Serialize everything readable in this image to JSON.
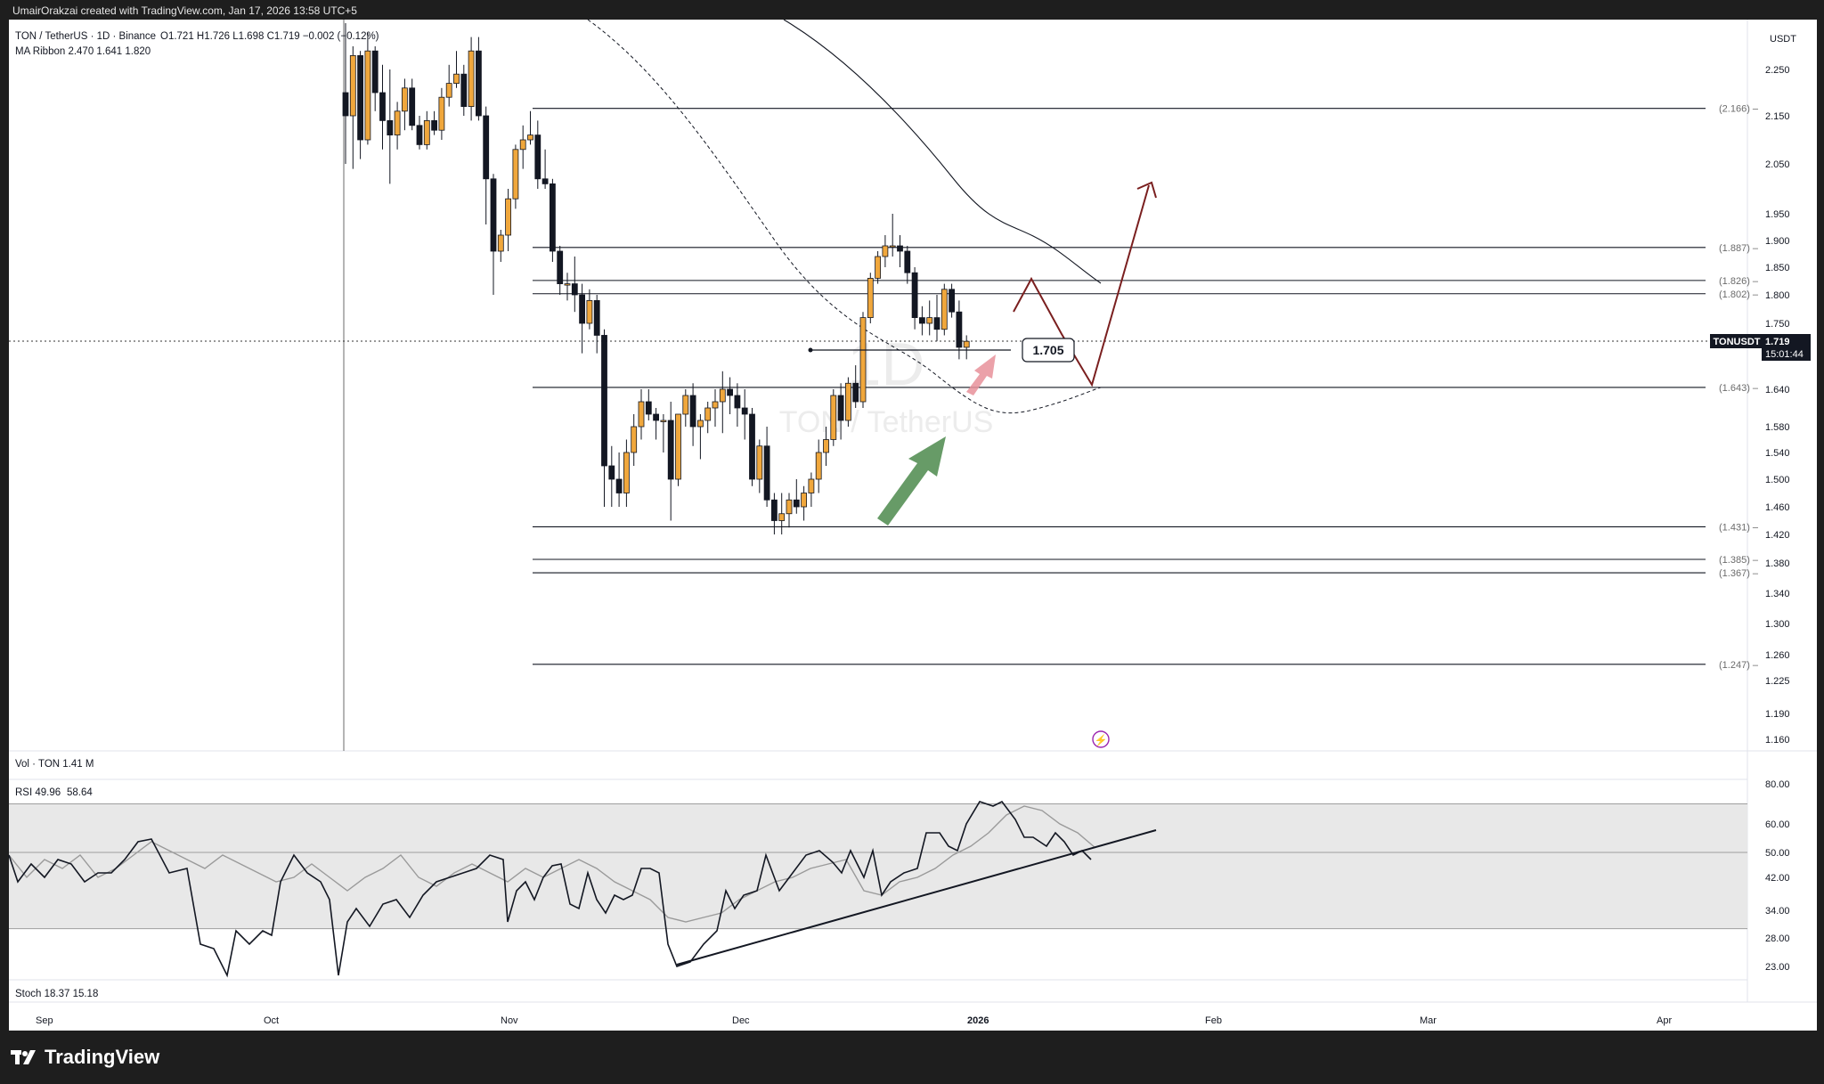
{
  "header": {
    "credit": "UmairOrakzai created with TradingView.com, Jan 17, 2026 13:58 UTC+5"
  },
  "symbol": {
    "title": "TON / TetherUS · 1D · Binance",
    "ohlc": "O1.721 H1.726 L1.698 C1.719 −0.002 (−0.12%)",
    "ma_ribbon": "MA Ribbon  2.470  1.641  1.820",
    "watermark_interval": "1D",
    "watermark_name": "TON / TetherUS",
    "currency": "USDT",
    "ticker_badge": "TONUSDT",
    "last_price": "1.719",
    "countdown": "15:01:44",
    "callout_price": "1.705"
  },
  "panes": {
    "volume": "Vol · TON  1.41 M",
    "rsi_label": "RSI  49.96",
    "rsi_ma": "58.64",
    "stoch": "Stoch  18.37  15.18"
  },
  "time_axis": [
    "Sep",
    "Oct",
    "Nov",
    "Dec",
    "2026",
    "Feb",
    "Mar",
    "Apr"
  ],
  "price_axis": [
    "2.250",
    "2.150",
    "2.050",
    "1.950",
    "1.900",
    "1.850",
    "1.800",
    "1.750",
    "1.640",
    "1.580",
    "1.540",
    "1.500",
    "1.460",
    "1.420",
    "1.380",
    "1.340",
    "1.300",
    "1.260",
    "1.225",
    "1.190",
    "1.160"
  ],
  "rsi_axis": [
    "80.00",
    "60.00",
    "50.00",
    "42.00",
    "34.00",
    "28.00",
    "23.00"
  ],
  "levels": [
    "(2.166)",
    "(1.887)",
    "(1.826)",
    "(1.802)",
    "(1.643)",
    "(1.431)",
    "(1.385)",
    "(1.367)",
    "(1.247)"
  ],
  "colors": {
    "up": "#f0a73c",
    "down": "#131722",
    "arrow": "#7a1f1f",
    "green_arrow": "#4c8a4c",
    "red_arrow": "#e8919a",
    "background": "#ffffff",
    "frame": "#1e1e1e"
  },
  "footer": {
    "brand": "TradingView"
  },
  "chart_data": {
    "type": "candlestick",
    "timeframe": "1D",
    "ylim": [
      1.15,
      2.3
    ],
    "horizontal_levels": [
      2.166,
      1.887,
      1.826,
      1.802,
      1.643,
      1.431,
      1.385,
      1.367,
      1.247
    ],
    "rsi": {
      "value": 49.96,
      "ma": 58.64,
      "band": [
        30,
        70
      ],
      "ylim": [
        20,
        82
      ]
    },
    "stoch": {
      "k": 18.37,
      "d": 15.18
    },
    "candles": [
      [
        2.2,
        2.35,
        2.05,
        2.15
      ],
      [
        2.15,
        2.3,
        2.04,
        2.28
      ],
      [
        2.28,
        2.29,
        2.06,
        2.1
      ],
      [
        2.1,
        2.33,
        2.09,
        2.29
      ],
      [
        2.29,
        2.3,
        2.16,
        2.2
      ],
      [
        2.2,
        2.26,
        2.08,
        2.14
      ],
      [
        2.14,
        2.25,
        2.01,
        2.11
      ],
      [
        2.11,
        2.18,
        2.08,
        2.16
      ],
      [
        2.16,
        2.23,
        2.12,
        2.21
      ],
      [
        2.21,
        2.23,
        2.12,
        2.13
      ],
      [
        2.13,
        2.15,
        2.08,
        2.09
      ],
      [
        2.09,
        2.16,
        2.08,
        2.14
      ],
      [
        2.14,
        2.16,
        2.11,
        2.12
      ],
      [
        2.12,
        2.21,
        2.1,
        2.19
      ],
      [
        2.19,
        2.26,
        2.17,
        2.22
      ],
      [
        2.22,
        2.29,
        2.21,
        2.24
      ],
      [
        2.24,
        2.26,
        2.15,
        2.17
      ],
      [
        2.17,
        2.32,
        2.14,
        2.29
      ],
      [
        2.29,
        2.32,
        2.14,
        2.15
      ],
      [
        2.15,
        2.17,
        1.93,
        2.02
      ],
      [
        2.02,
        2.03,
        1.8,
        1.88
      ],
      [
        1.88,
        1.92,
        1.86,
        1.91
      ],
      [
        1.91,
        2.0,
        1.88,
        1.98
      ],
      [
        1.98,
        2.09,
        1.96,
        2.08
      ],
      [
        2.08,
        2.13,
        2.04,
        2.1
      ],
      [
        2.1,
        2.16,
        2.09,
        2.11
      ],
      [
        2.11,
        2.14,
        2.0,
        2.02
      ],
      [
        2.02,
        2.08,
        2.0,
        2.01
      ],
      [
        2.01,
        2.02,
        1.86,
        1.88
      ],
      [
        1.88,
        1.89,
        1.8,
        1.82
      ],
      [
        1.82,
        1.84,
        1.79,
        1.82
      ],
      [
        1.82,
        1.87,
        1.77,
        1.8
      ],
      [
        1.8,
        1.82,
        1.7,
        1.75
      ],
      [
        1.75,
        1.81,
        1.74,
        1.79
      ],
      [
        1.79,
        1.8,
        1.7,
        1.73
      ],
      [
        1.73,
        1.74,
        1.46,
        1.52
      ],
      [
        1.52,
        1.55,
        1.46,
        1.5
      ],
      [
        1.5,
        1.54,
        1.46,
        1.48
      ],
      [
        1.48,
        1.56,
        1.46,
        1.54
      ],
      [
        1.54,
        1.6,
        1.52,
        1.58
      ],
      [
        1.58,
        1.64,
        1.56,
        1.62
      ],
      [
        1.62,
        1.64,
        1.59,
        1.6
      ],
      [
        1.6,
        1.61,
        1.56,
        1.59
      ],
      [
        1.59,
        1.6,
        1.54,
        1.59
      ],
      [
        1.59,
        1.62,
        1.44,
        1.5
      ],
      [
        1.5,
        1.6,
        1.49,
        1.6
      ],
      [
        1.6,
        1.64,
        1.58,
        1.63
      ],
      [
        1.63,
        1.65,
        1.55,
        1.58
      ],
      [
        1.58,
        1.6,
        1.53,
        1.59
      ],
      [
        1.59,
        1.62,
        1.57,
        1.61
      ],
      [
        1.61,
        1.64,
        1.58,
        1.62
      ],
      [
        1.62,
        1.67,
        1.57,
        1.64
      ],
      [
        1.64,
        1.66,
        1.6,
        1.63
      ],
      [
        1.63,
        1.65,
        1.58,
        1.61
      ],
      [
        1.61,
        1.64,
        1.56,
        1.6
      ],
      [
        1.6,
        1.61,
        1.49,
        1.5
      ],
      [
        1.5,
        1.56,
        1.48,
        1.55
      ],
      [
        1.55,
        1.58,
        1.46,
        1.47
      ],
      [
        1.47,
        1.48,
        1.42,
        1.44
      ],
      [
        1.44,
        1.48,
        1.42,
        1.45
      ],
      [
        1.45,
        1.48,
        1.43,
        1.47
      ],
      [
        1.47,
        1.5,
        1.45,
        1.46
      ],
      [
        1.46,
        1.49,
        1.44,
        1.48
      ],
      [
        1.48,
        1.51,
        1.46,
        1.5
      ],
      [
        1.5,
        1.56,
        1.48,
        1.54
      ],
      [
        1.54,
        1.58,
        1.52,
        1.56
      ],
      [
        1.56,
        1.64,
        1.55,
        1.63
      ],
      [
        1.63,
        1.65,
        1.56,
        1.59
      ],
      [
        1.59,
        1.66,
        1.58,
        1.65
      ],
      [
        1.65,
        1.68,
        1.61,
        1.62
      ],
      [
        1.62,
        1.77,
        1.61,
        1.76
      ],
      [
        1.76,
        1.84,
        1.75,
        1.83
      ],
      [
        1.83,
        1.88,
        1.82,
        1.87
      ],
      [
        1.87,
        1.91,
        1.85,
        1.89
      ],
      [
        1.89,
        1.95,
        1.87,
        1.89
      ],
      [
        1.89,
        1.91,
        1.85,
        1.88
      ],
      [
        1.88,
        1.89,
        1.82,
        1.84
      ],
      [
        1.84,
        1.85,
        1.74,
        1.76
      ],
      [
        1.76,
        1.78,
        1.73,
        1.75
      ],
      [
        1.75,
        1.79,
        1.73,
        1.76
      ],
      [
        1.76,
        1.8,
        1.72,
        1.74
      ],
      [
        1.74,
        1.82,
        1.73,
        1.81
      ],
      [
        1.81,
        1.82,
        1.76,
        1.77
      ],
      [
        1.77,
        1.79,
        1.69,
        1.71
      ],
      [
        1.71,
        1.73,
        1.69,
        1.72
      ]
    ]
  }
}
